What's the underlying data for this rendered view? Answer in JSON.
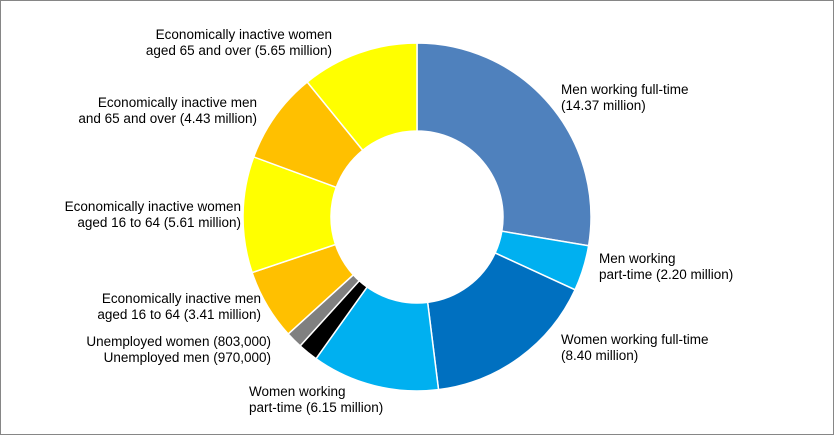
{
  "chart_data": {
    "type": "pie",
    "variant": "donut",
    "title": "",
    "unit": "million",
    "slices": [
      {
        "value": 14.37,
        "color": "#4f81bd",
        "label_lines": [
          "Men working full-time",
          "(14.37 million)"
        ]
      },
      {
        "value": 2.2,
        "color": "#00b0f0",
        "label_lines": [
          "Men working",
          "part-time (2.20 million)"
        ]
      },
      {
        "value": 8.4,
        "color": "#0070c0",
        "label_lines": [
          "Women working full-time",
          "(8.40 million)"
        ]
      },
      {
        "value": 6.15,
        "color": "#00b0f0",
        "label_lines": [
          "Women working",
          "part-time (6.15 million)"
        ]
      },
      {
        "value": 0.97,
        "color": "#000000",
        "label_lines": [
          "Unemployed men (970,000)"
        ]
      },
      {
        "value": 0.803,
        "color": "#808080",
        "label_lines": [
          "Unemployed women (803,000)"
        ]
      },
      {
        "value": 3.41,
        "color": "#ffc000",
        "label_lines": [
          "Economically inactive men",
          "aged 16 to 64 (3.41 million)"
        ]
      },
      {
        "value": 5.61,
        "color": "#ffff00",
        "label_lines": [
          "Economically inactive women",
          "aged 16 to 64 (5.61 million)"
        ]
      },
      {
        "value": 4.43,
        "color": "#ffc000",
        "label_lines": [
          "Economically inactive men",
          "and 65 and over (4.43 million)"
        ]
      },
      {
        "value": 5.65,
        "color": "#ffff00",
        "label_lines": [
          "Economically inactive women",
          "aged 65 and over (5.65 million)"
        ]
      }
    ]
  }
}
